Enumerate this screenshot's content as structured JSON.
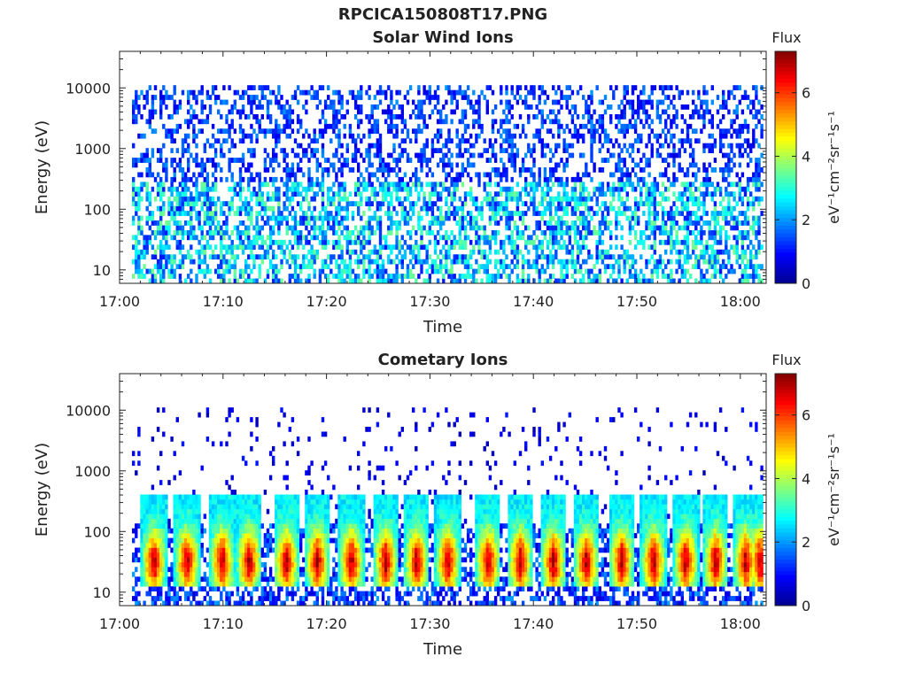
{
  "figure_title": "RPCICA150808T17.PNG",
  "colors": {
    "jet_stops": [
      "#00008f",
      "#0000ff",
      "#00ffff",
      "#ffff00",
      "#ff0000",
      "#800000"
    ],
    "axis": "#222222",
    "background": "#ffffff"
  },
  "chart_data": [
    {
      "type": "heatmap",
      "title": "Solar Wind Ions",
      "xlabel": "Time",
      "ylabel": "Energy (eV)",
      "x_tick_labels": [
        "17:00",
        "17:10",
        "17:20",
        "17:30",
        "17:40",
        "17:50",
        "18:00"
      ],
      "x_ticks_min": [
        0,
        10,
        20,
        30,
        40,
        50,
        60
      ],
      "xlim_min": [
        0,
        62.5
      ],
      "y_scale": "log",
      "y_tick_labels": [
        "10",
        "100",
        "1000",
        "10000"
      ],
      "y_ticks": [
        10,
        100,
        1000,
        10000
      ],
      "ylim": [
        6,
        40000
      ],
      "colorbar": {
        "label_top": "Flux",
        "unit": "eV⁻¹cm⁻²sr⁻¹s⁻¹",
        "ticks": [
          0,
          2,
          4,
          6
        ],
        "range": [
          0,
          7.3
        ],
        "colormap": "jet"
      },
      "data_start_min": 1.2,
      "data_end_min": 62.2,
      "description_of_distribution": {
        "background_flux": 1.2,
        "low_energy_band_eV": [
          6,
          300
        ],
        "low_energy_flux": 2.5,
        "peak_flux": 3.8
      }
    },
    {
      "type": "heatmap",
      "title": "Cometary Ions",
      "xlabel": "Time",
      "ylabel": "Energy (eV)",
      "x_tick_labels": [
        "17:00",
        "17:10",
        "17:20",
        "17:30",
        "17:40",
        "17:50",
        "18:00"
      ],
      "x_ticks_min": [
        0,
        10,
        20,
        30,
        40,
        50,
        60
      ],
      "xlim_min": [
        0,
        62.5
      ],
      "y_scale": "log",
      "y_tick_labels": [
        "10",
        "100",
        "1000",
        "10000"
      ],
      "y_ticks": [
        10,
        100,
        1000,
        10000
      ],
      "ylim": [
        6,
        40000
      ],
      "colorbar": {
        "label_top": "Flux",
        "unit": "eV⁻¹cm⁻²sr⁻¹s⁻¹",
        "ticks": [
          0,
          2,
          4,
          6
        ],
        "range": [
          0,
          7.3
        ],
        "colormap": "jet"
      },
      "data_start_min": 1.2,
      "data_end_min": 62.2,
      "bursts_min": [
        3.2,
        6.4,
        9.8,
        12.4,
        16.0,
        19.0,
        22.3,
        25.6,
        28.6,
        31.6,
        35.5,
        38.6,
        41.8,
        45.0,
        48.4,
        51.5,
        54.6,
        57.5,
        60.4,
        61.8
      ],
      "burst_peak_flux": 6.5,
      "burst_energy_eV": [
        12,
        400
      ]
    }
  ]
}
